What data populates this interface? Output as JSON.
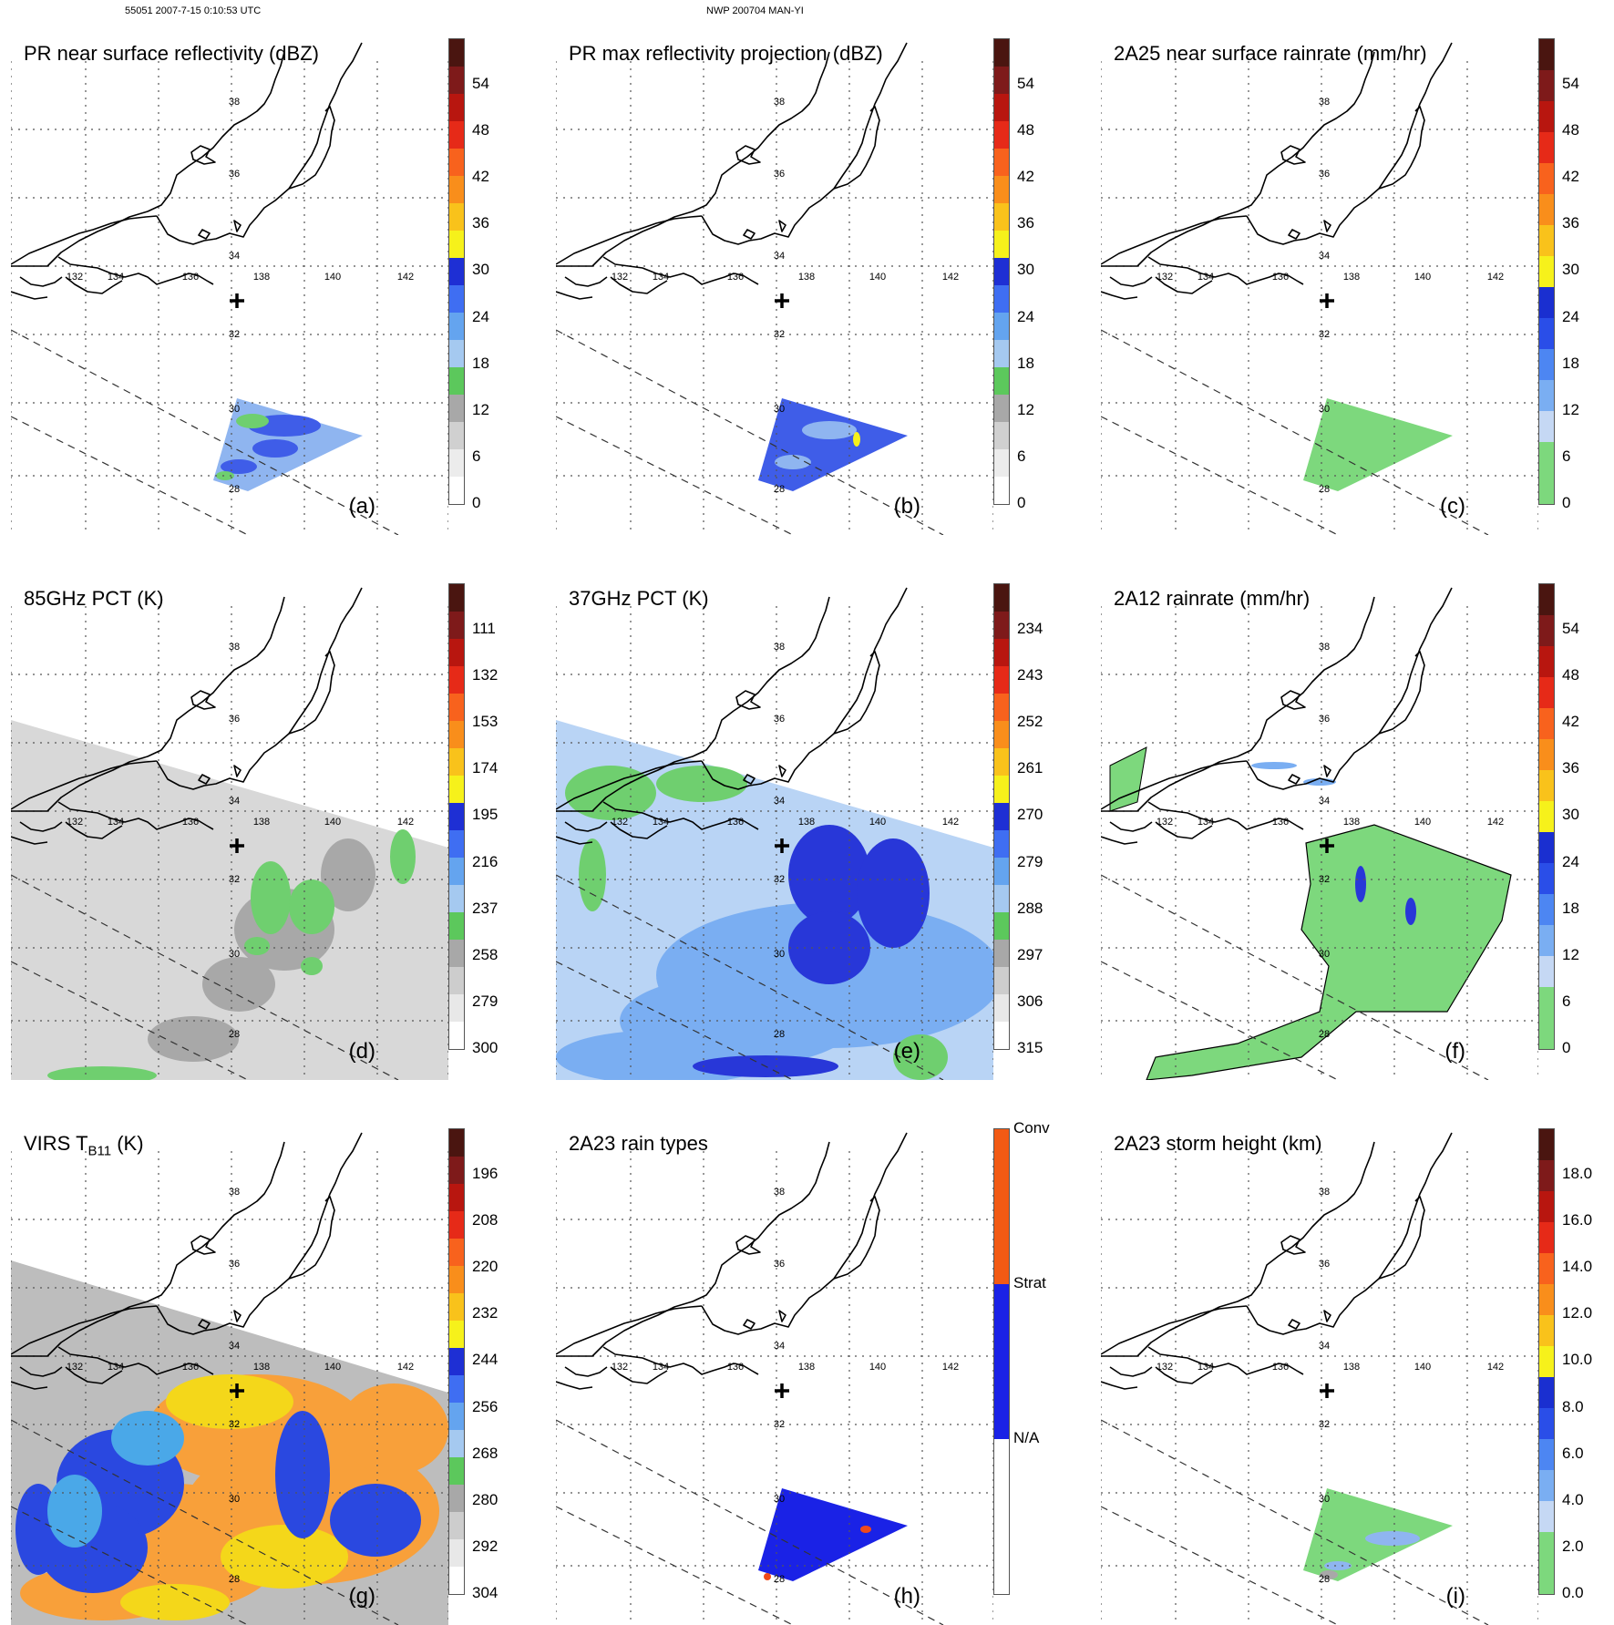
{
  "header": {
    "left": "55051 2007-7-15 0:10:53 UTC",
    "center": "NWP 200704 MAN-YI"
  },
  "map": {
    "lon_labels": [
      "132",
      "134",
      "136",
      "138",
      "140",
      "142"
    ],
    "lat_labels": [
      "38",
      "36",
      "34",
      "32",
      "30",
      "28"
    ]
  },
  "colors": {
    "coast": "#000000",
    "grid": "#555555",
    "green": "#6fcf6f",
    "blue": "#1a2fd6",
    "light_blue": "#6fa8f0",
    "grey_swath": "#cfcfcf",
    "orange": "#f89a2a",
    "yellow": "#f4e51a"
  },
  "panels": [
    {
      "id": "a",
      "title": "PR near surface reflectivity (dBZ)",
      "label": "(a)",
      "ticks": [
        "54",
        "48",
        "42",
        "36",
        "30",
        "24",
        "18",
        "12",
        "6",
        "0"
      ]
    },
    {
      "id": "b",
      "title": "PR max reflectivity projection (dBZ)",
      "label": "(b)",
      "ticks": [
        "54",
        "48",
        "42",
        "36",
        "30",
        "24",
        "18",
        "12",
        "6",
        "0"
      ]
    },
    {
      "id": "c",
      "title": "2A25 near surface rainrate (mm/hr)",
      "label": "(c)",
      "ticks": [
        "54",
        "48",
        "42",
        "36",
        "30",
        "24",
        "18",
        "12",
        "6",
        "0"
      ]
    },
    {
      "id": "d",
      "title": "85GHz PCT (K)",
      "label": "(d)",
      "ticks": [
        "111",
        "132",
        "153",
        "174",
        "195",
        "216",
        "237",
        "258",
        "279",
        "300"
      ]
    },
    {
      "id": "e",
      "title": "37GHz PCT (K)",
      "label": "(e)",
      "ticks": [
        "234",
        "243",
        "252",
        "261",
        "270",
        "279",
        "288",
        "297",
        "306",
        "315"
      ]
    },
    {
      "id": "f",
      "title": "2A12 rainrate (mm/hr)",
      "label": "(f)",
      "ticks": [
        "54",
        "48",
        "42",
        "36",
        "30",
        "24",
        "18",
        "12",
        "6",
        "0"
      ]
    },
    {
      "id": "g",
      "title": "VIRS T",
      "title_sub": "B11",
      "title_end": " (K)",
      "label": "(g)",
      "ticks": [
        "196",
        "208",
        "220",
        "232",
        "244",
        "256",
        "268",
        "280",
        "292",
        "304"
      ]
    },
    {
      "id": "h",
      "title": "2A23 rain types",
      "label": "(h)",
      "ticks": [
        "Conv",
        "Strat",
        "N/A"
      ]
    },
    {
      "id": "i",
      "title": "2A23 storm height (km)",
      "label": "(i)",
      "ticks": [
        "18.0",
        "16.0",
        "14.0",
        "12.0",
        "10.0",
        "8.0",
        "6.0",
        "4.0",
        "2.0",
        "0.0"
      ]
    }
  ]
}
